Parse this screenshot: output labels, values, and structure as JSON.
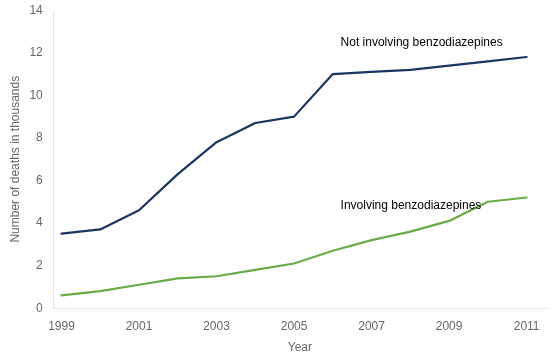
{
  "chart_data": {
    "type": "line",
    "x": [
      1999,
      2000,
      2001,
      2002,
      2003,
      2004,
      2005,
      2006,
      2007,
      2008,
      2009,
      2010,
      2011
    ],
    "series": [
      {
        "name": "Not involving benzodiazepines",
        "color": "#1a3560",
        "values": [
          3.5,
          3.7,
          4.6,
          6.3,
          7.8,
          8.7,
          9.0,
          11.0,
          11.1,
          11.2,
          11.4,
          11.6,
          11.8
        ]
      },
      {
        "name": "Involving benzodiazepines",
        "color": "#6aaa4b",
        "values": [
          0.6,
          0.8,
          1.1,
          1.4,
          1.5,
          1.8,
          2.1,
          2.7,
          3.2,
          3.6,
          4.1,
          5.0,
          5.2
        ]
      }
    ],
    "xlabel": "Year",
    "ylabel": "Number of deaths in thousands",
    "xlim": [
      1998.8,
      2011.5
    ],
    "xticks": [
      1999,
      2001,
      2003,
      2005,
      2007,
      2009,
      2011
    ],
    "ylim": [
      0,
      14
    ],
    "yticks": [
      0,
      2,
      4,
      6,
      8,
      10,
      12,
      14
    ],
    "grid": false,
    "annotations": [
      {
        "text": "Not involving benzodiazepines",
        "x": 2006.2,
        "y": 12.2
      },
      {
        "text": "Involving benzodiazepines",
        "x": 2006.2,
        "y": 4.55
      }
    ]
  }
}
